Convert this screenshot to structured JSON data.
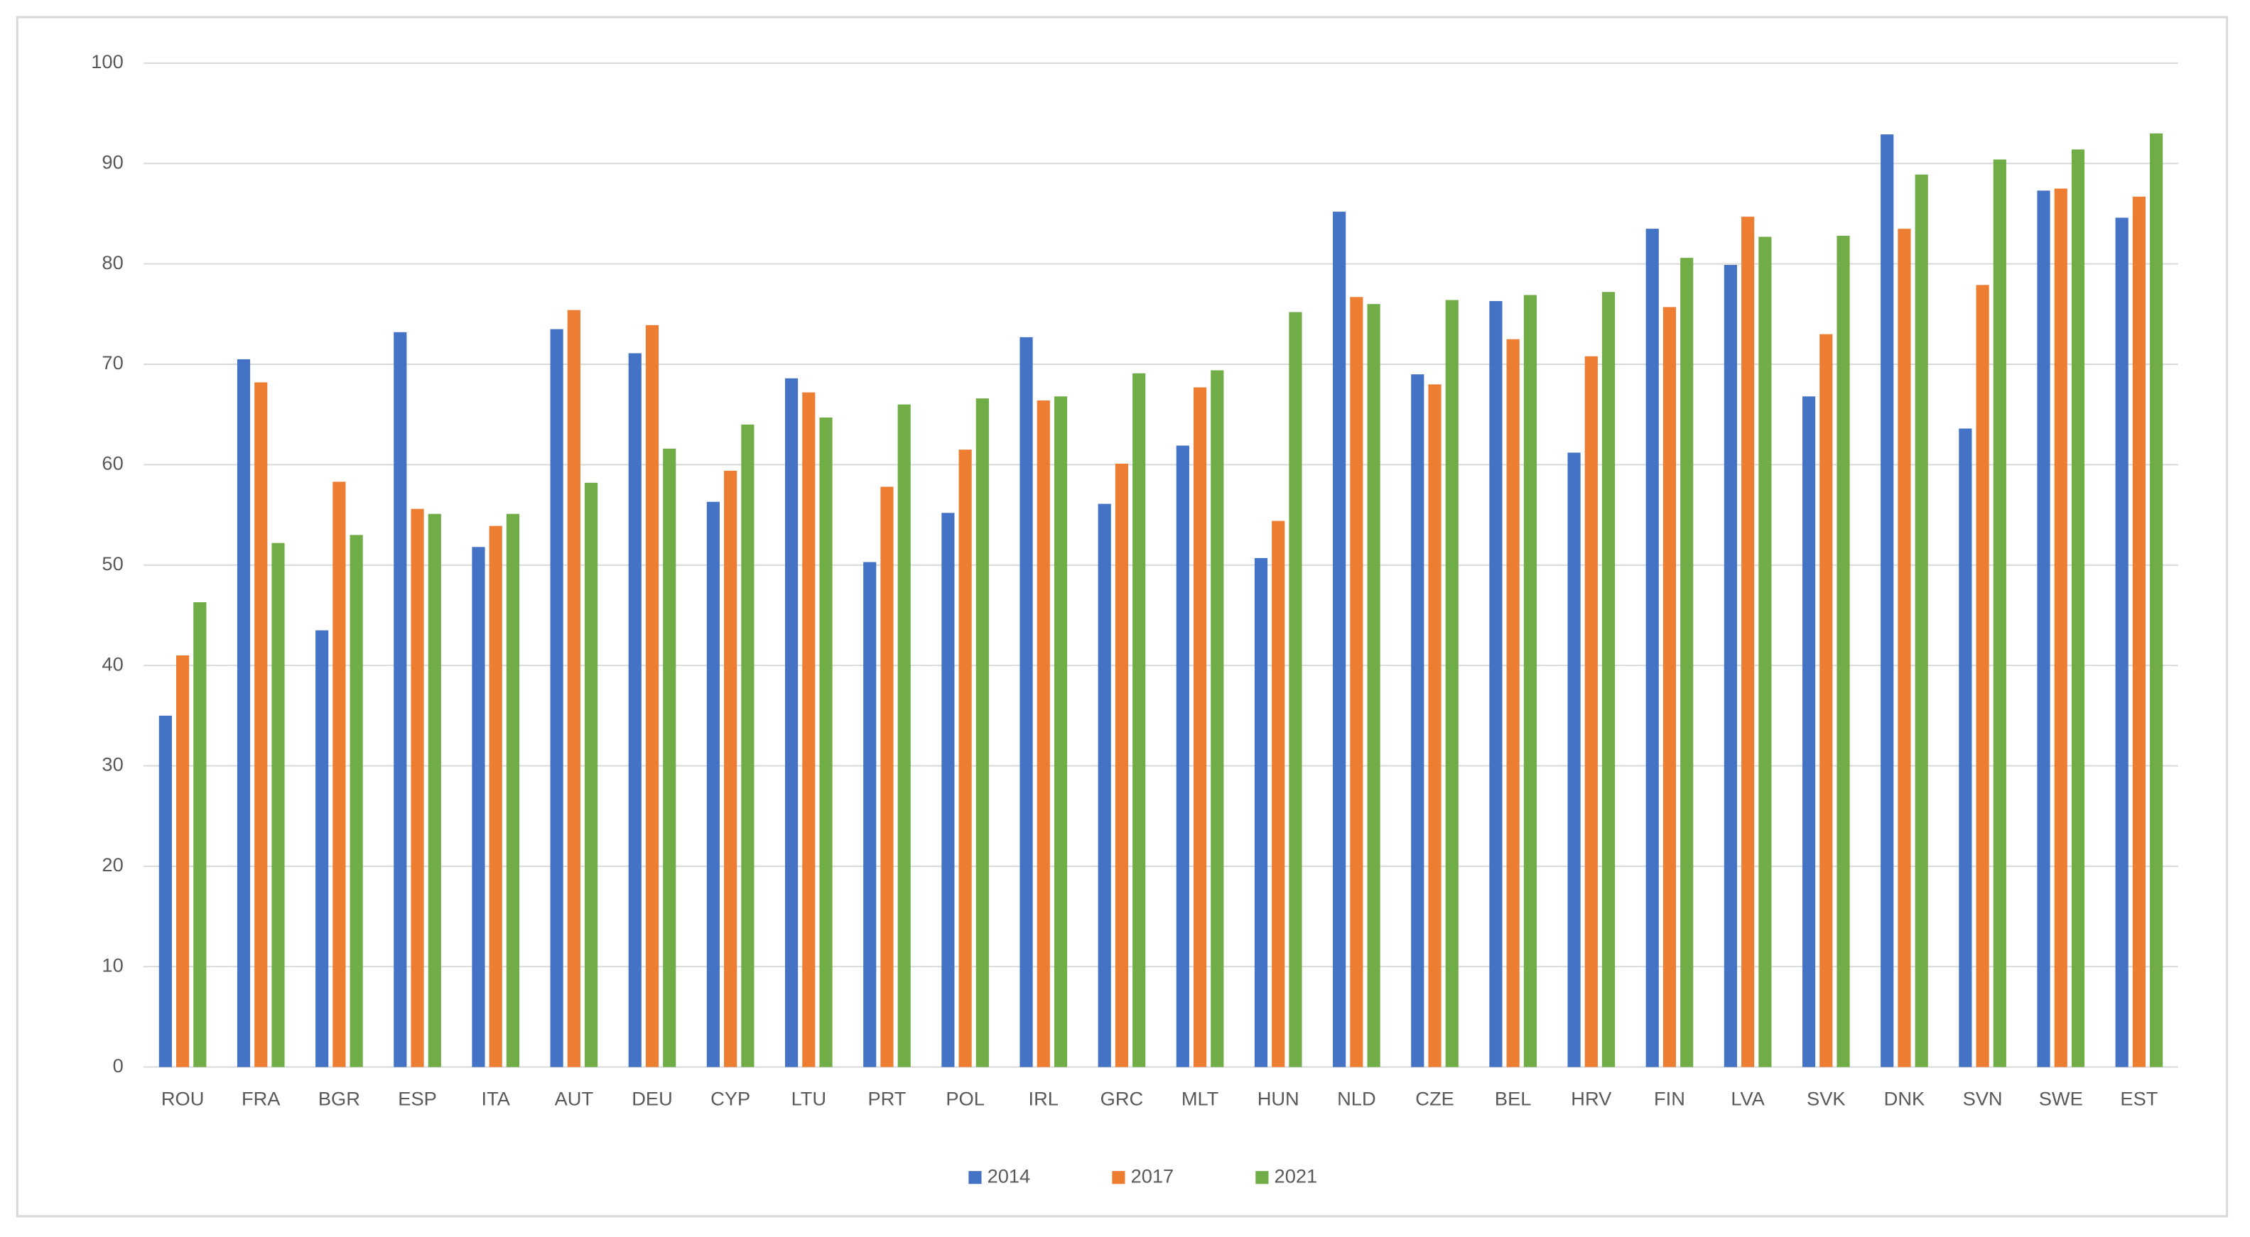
{
  "chart_data": {
    "type": "bar",
    "categories": [
      "ROU",
      "FRA",
      "BGR",
      "ESP",
      "ITA",
      "AUT",
      "DEU",
      "CYP",
      "LTU",
      "PRT",
      "POL",
      "IRL",
      "GRC",
      "MLT",
      "HUN",
      "NLD",
      "CZE",
      "BEL",
      "HRV",
      "FIN",
      "LVA",
      "SVK",
      "DNK",
      "SVN",
      "SWE",
      "EST"
    ],
    "series": [
      {
        "name": "2014",
        "color": "#4472c4",
        "values": [
          35,
          70.5,
          43.5,
          73.2,
          51.8,
          73.5,
          71.1,
          56.3,
          68.6,
          50.3,
          55.2,
          72.7,
          56.1,
          61.9,
          50.7,
          85.2,
          69,
          76.3,
          61.2,
          83.5,
          79.9,
          66.8,
          92.9,
          63.6,
          87.3,
          84.6
        ]
      },
      {
        "name": "2017",
        "color": "#ed7d31",
        "values": [
          41,
          68.2,
          58.3,
          55.6,
          53.9,
          75.4,
          73.9,
          59.4,
          67.2,
          57.8,
          61.5,
          66.4,
          60.1,
          67.7,
          54.4,
          76.7,
          68,
          72.5,
          70.8,
          75.7,
          84.7,
          73,
          83.5,
          77.9,
          87.5,
          86.7
        ]
      },
      {
        "name": "2021",
        "color": "#70ad47",
        "values": [
          46.3,
          52.2,
          53,
          55.1,
          55.1,
          58.2,
          61.6,
          64,
          64.7,
          66,
          66.6,
          66.8,
          69.1,
          69.4,
          75.2,
          76,
          76.4,
          76.9,
          77.2,
          80.6,
          82.7,
          82.8,
          88.9,
          90.4,
          91.4,
          93
        ]
      }
    ],
    "ylim": [
      0,
      100
    ],
    "yticks": [
      0,
      10,
      20,
      30,
      40,
      50,
      60,
      70,
      80,
      90,
      100
    ],
    "grid": true,
    "legend": "bottom"
  }
}
